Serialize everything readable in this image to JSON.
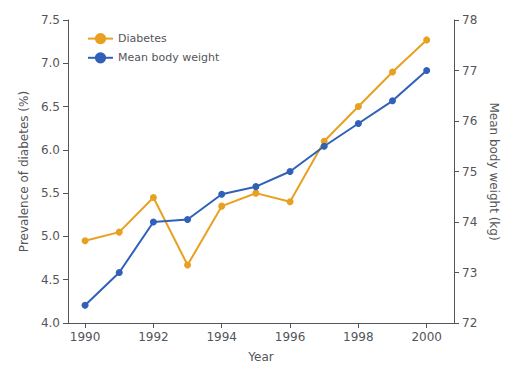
{
  "chart_data": {
    "type": "line",
    "x": [
      1990,
      1991,
      1992,
      1993,
      1994,
      1995,
      1996,
      1997,
      1998,
      1999,
      2000
    ],
    "xlabel": "Year",
    "ylabel": "Prevalence of diabetes (%)",
    "y2label": "Mean body weight (kg)",
    "series": [
      {
        "name": "Diabetes",
        "color": "#E8A020",
        "marker": "circle",
        "axis": "y",
        "values": [
          4.95,
          5.05,
          5.45,
          4.67,
          5.35,
          5.5,
          5.4,
          6.1,
          6.5,
          6.9,
          7.27
        ]
      },
      {
        "name": "Mean body weight",
        "color": "#3060B8",
        "marker": "circle",
        "axis": "y2",
        "values": [
          72.35,
          73.0,
          74.0,
          74.05,
          74.55,
          74.7,
          75.0,
          75.5,
          75.95,
          76.4,
          77.0
        ]
      }
    ],
    "xlim": [
      1989.5,
      2000.8
    ],
    "xticks": [
      1990,
      1992,
      1994,
      1996,
      1998,
      2000
    ],
    "ylim": [
      4.0,
      7.5
    ],
    "yticks": [
      {
        "value": 4.0,
        "label": "4.0"
      },
      4.5,
      {
        "value": 5.0,
        "label": "5.0"
      },
      5.5,
      {
        "value": 6.0,
        "label": "6.0"
      },
      6.5,
      {
        "value": 7.0,
        "label": "7.0"
      },
      7.5
    ],
    "y2lim": [
      72,
      78
    ],
    "y2ticks": [
      72,
      73,
      74,
      75,
      76,
      77,
      78
    ],
    "grid": false,
    "legend": "upper left"
  }
}
